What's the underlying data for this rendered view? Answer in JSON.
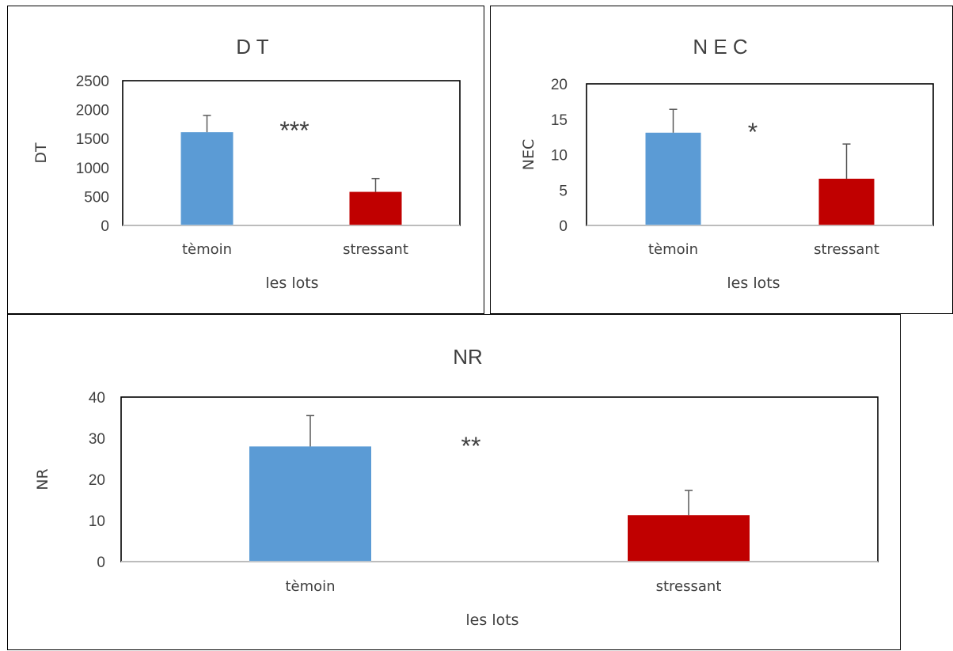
{
  "chart_data": [
    {
      "id": "dt",
      "type": "bar",
      "title": "D T",
      "ylabel": "DT",
      "xlabel": "les lots",
      "categories": [
        "tèmoin",
        "stressant"
      ],
      "values": [
        1610,
        580
      ],
      "error": [
        290,
        230
      ],
      "colors": [
        "#5B9BD5",
        "#C00000"
      ],
      "ylim": [
        0,
        2500
      ],
      "yticks": [
        "0",
        "500",
        "1000",
        "1500",
        "2000",
        "2500"
      ],
      "annotation": "***",
      "grid": false
    },
    {
      "id": "nec",
      "type": "bar",
      "title": "N E C",
      "ylabel": "NEC",
      "xlabel": "les lots",
      "categories": [
        "tèmoin",
        "stressant"
      ],
      "values": [
        13.1,
        6.6
      ],
      "error": [
        3.3,
        4.9
      ],
      "colors": [
        "#5B9BD5",
        "#C00000"
      ],
      "ylim": [
        0,
        20
      ],
      "yticks": [
        "0",
        "5",
        "10",
        "15",
        "20"
      ],
      "annotation": "*",
      "grid": false
    },
    {
      "id": "nr",
      "type": "bar",
      "title": "NR",
      "ylabel": "NR",
      "xlabel": "les lots",
      "categories": [
        "tèmoin",
        "stressant"
      ],
      "values": [
        28,
        11.3
      ],
      "error": [
        7.5,
        6
      ],
      "colors": [
        "#5B9BD5",
        "#C00000"
      ],
      "ylim": [
        0,
        40
      ],
      "yticks": [
        "0",
        "10",
        "20",
        "30",
        "40"
      ],
      "annotation": "**",
      "grid": false
    }
  ]
}
